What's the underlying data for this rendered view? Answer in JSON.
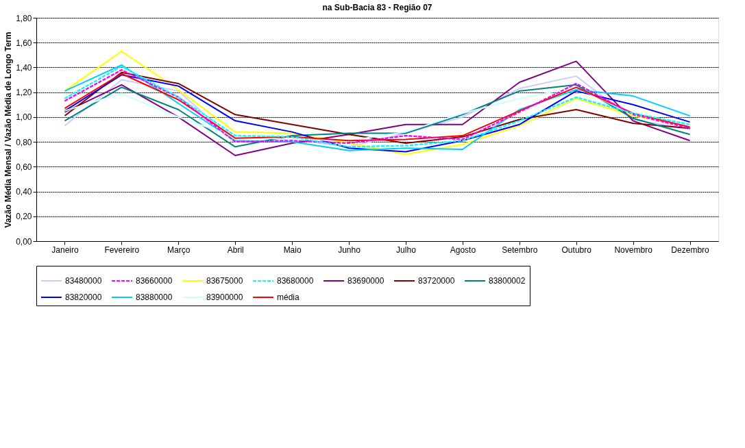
{
  "chart_data": {
    "type": "line",
    "title": "na Sub-Bacia 83 - Região 07",
    "ylabel": "Vazão Média Mensal / Vazão Média de Longo Term",
    "categories": [
      "Janeiro",
      "Fevereiro",
      "Março",
      "Abril",
      "Maio",
      "Junho",
      "Julho",
      "Agosto",
      "Setembro",
      "Outubro",
      "Novembro",
      "Dezembro"
    ],
    "ylim": [
      0,
      1.8
    ],
    "yticks": [
      {
        "value": 0,
        "label": "0,00"
      },
      {
        "value": 0.2,
        "label": "0,20"
      },
      {
        "value": 0.4,
        "label": "0,40"
      },
      {
        "value": 0.6,
        "label": "0,60"
      },
      {
        "value": 0.8,
        "label": "0,80"
      },
      {
        "value": 1.0,
        "label": "1,00"
      },
      {
        "value": 1.2,
        "label": "1,20"
      },
      {
        "value": 1.4,
        "label": "1,40"
      },
      {
        "value": 1.6,
        "label": "1,60"
      },
      {
        "value": 1.8,
        "label": "1,80"
      }
    ],
    "grid": "y",
    "legend": "bottom",
    "marker": "none",
    "series": [
      {
        "name": "83480000",
        "color": "#ccccff",
        "line_style": "solid",
        "values": [
          0.93,
          1.3,
          1.21,
          0.8,
          0.82,
          0.76,
          0.87,
          1.0,
          1.23,
          1.33,
          0.98,
          0.9
        ]
      },
      {
        "name": "83660000",
        "color": "#ff00ff",
        "line_style": "dashed",
        "values": [
          1.13,
          1.38,
          1.16,
          0.8,
          0.81,
          0.79,
          0.85,
          0.82,
          1.04,
          1.27,
          1.02,
          0.91
        ]
      },
      {
        "name": "83675000",
        "color": "#ffff00",
        "line_style": "solid",
        "values": [
          1.21,
          1.53,
          1.22,
          0.88,
          0.87,
          0.79,
          0.7,
          0.78,
          0.93,
          1.15,
          1.01,
          0.93
        ]
      },
      {
        "name": "83680000",
        "color": "#00ffff",
        "line_style": "dashed",
        "values": [
          1.15,
          1.41,
          1.16,
          0.85,
          0.84,
          0.76,
          0.77,
          0.81,
          0.97,
          1.16,
          1.03,
          0.94
        ]
      },
      {
        "name": "83690000",
        "color": "#800080",
        "line_style": "solid",
        "values": [
          1.04,
          1.26,
          1.0,
          0.69,
          0.79,
          0.86,
          0.94,
          0.94,
          1.28,
          1.45,
          0.97,
          0.81
        ]
      },
      {
        "name": "83720000",
        "color": "#800000",
        "line_style": "solid",
        "values": [
          1.01,
          1.36,
          1.27,
          1.02,
          0.94,
          0.86,
          0.79,
          0.84,
          0.98,
          1.06,
          0.95,
          0.91
        ]
      },
      {
        "name": "83800002",
        "color": "#008080",
        "line_style": "solid",
        "values": [
          0.97,
          1.24,
          1.06,
          0.76,
          0.85,
          0.87,
          0.87,
          1.02,
          1.21,
          1.26,
          0.99,
          0.86
        ]
      },
      {
        "name": "83820000",
        "color": "#0000ff",
        "line_style": "solid",
        "values": [
          1.05,
          1.34,
          1.25,
          0.97,
          0.88,
          0.75,
          0.72,
          0.81,
          0.94,
          1.21,
          1.1,
          0.96
        ]
      },
      {
        "name": "83880000",
        "color": "#00ccff",
        "line_style": "solid",
        "values": [
          1.21,
          1.42,
          1.11,
          0.81,
          0.8,
          0.73,
          0.75,
          0.74,
          1.06,
          1.22,
          1.17,
          1.01
        ]
      },
      {
        "name": "83900000",
        "color": "#ccffff",
        "line_style": "solid",
        "values": [
          1.05,
          1.19,
          1.0,
          0.84,
          0.82,
          0.81,
          0.88,
          1.03,
          1.15,
          1.24,
          1.02,
          0.93
        ]
      },
      {
        "name": "média",
        "color": "#ff0000",
        "line_style": "solid",
        "values": [
          1.07,
          1.35,
          1.14,
          0.83,
          0.84,
          0.81,
          0.82,
          0.85,
          1.05,
          1.24,
          1.03,
          0.92
        ]
      }
    ]
  }
}
